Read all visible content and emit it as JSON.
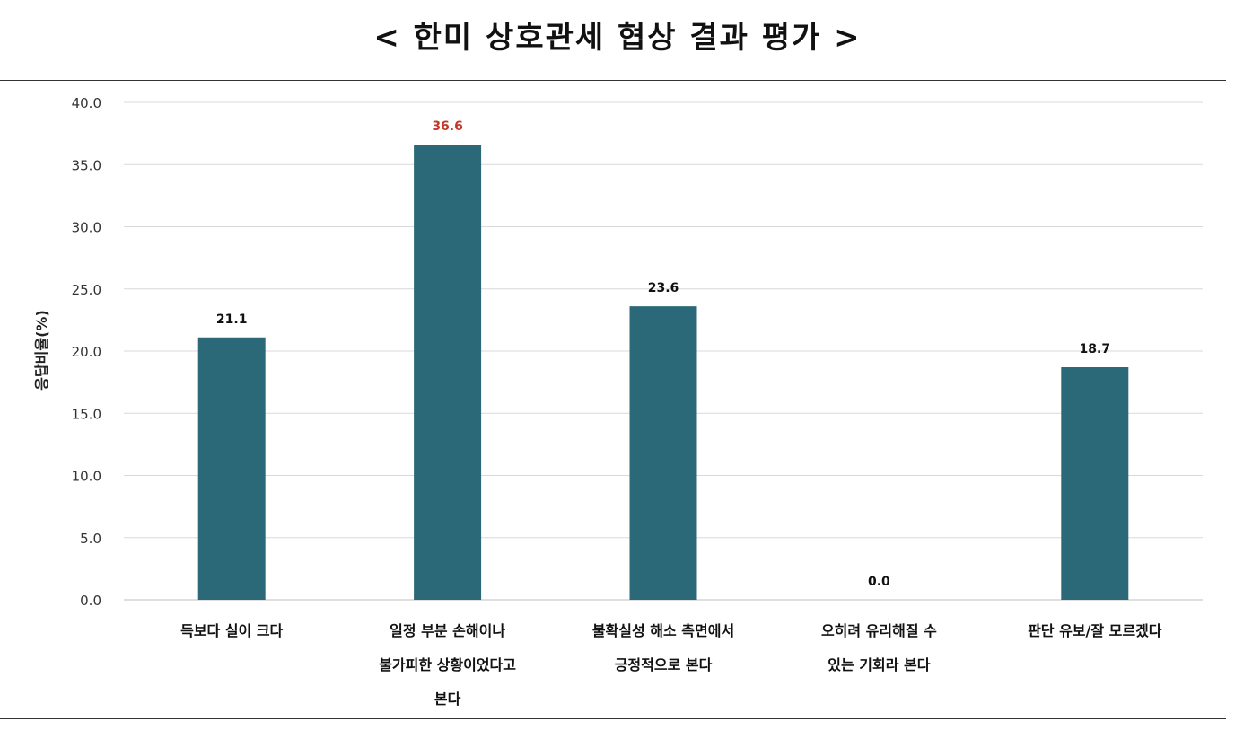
{
  "title": "< 한미 상호관세 협상 결과 평가 >",
  "colors": {
    "bar": "#2b6978",
    "highlight_label": "#c0392b",
    "label": "#111111",
    "grid": "#d9d9d9"
  },
  "chart_data": {
    "type": "bar",
    "categories": [
      [
        "득보다 실이 크다"
      ],
      [
        "일정 부분 손해이나",
        "불가피한 상황이었다고",
        "본다"
      ],
      [
        "불확실성 해소 측면에서",
        "긍정적으로 본다"
      ],
      [
        "오히려 유리해질 수",
        "있는 기회라 본다"
      ],
      [
        "판단 유보/잘 모르겠다"
      ]
    ],
    "values": [
      21.1,
      36.6,
      23.6,
      0.0,
      18.7
    ],
    "value_labels": [
      "21.1",
      "36.6",
      "23.6",
      "0.0",
      "18.7"
    ],
    "highlight_index": 1,
    "ylabel": "응답비율(%)",
    "xlabel": "",
    "ylim": [
      0,
      40
    ],
    "yticks": [
      "0.0",
      "5.0",
      "10.0",
      "15.0",
      "20.0",
      "25.0",
      "30.0",
      "35.0",
      "40.0"
    ],
    "grid": true,
    "legend": "none"
  }
}
